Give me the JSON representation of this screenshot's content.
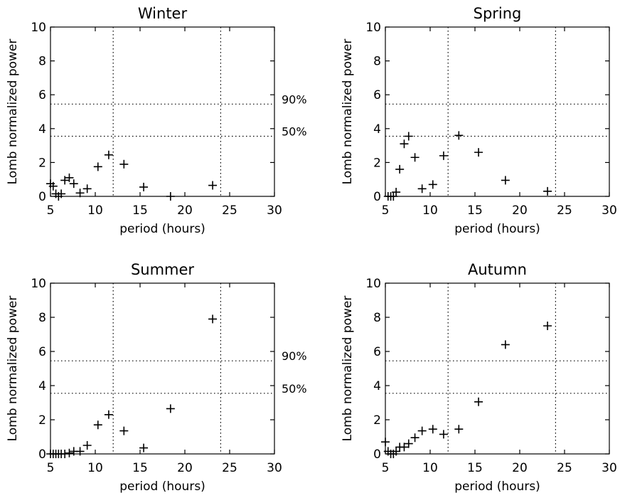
{
  "chart_data": [
    {
      "type": "scatter",
      "title": "Winter",
      "xlabel": "period (hours)",
      "ylabel": "Lomb normalized power",
      "xlim": [
        5,
        30
      ],
      "ylim": [
        0,
        10
      ],
      "xticks": [
        "5",
        "10",
        "15",
        "20",
        "25",
        "30"
      ],
      "yticks": [
        "0",
        "2",
        "4",
        "6",
        "8",
        "10"
      ],
      "reference_lines": {
        "vertical_x": [
          12,
          24
        ],
        "horizontal": [
          {
            "y": 3.55,
            "label": "50%"
          },
          {
            "y": 5.45,
            "label": "90%"
          }
        ]
      },
      "grid": false,
      "marker": "plus",
      "points": [
        [
          5.0,
          0.75
        ],
        [
          5.3,
          0.6
        ],
        [
          5.6,
          0.15
        ],
        [
          5.9,
          0.0
        ],
        [
          6.2,
          0.15
        ],
        [
          6.6,
          0.95
        ],
        [
          7.1,
          1.1
        ],
        [
          7.6,
          0.75
        ],
        [
          8.3,
          0.2
        ],
        [
          9.1,
          0.45
        ],
        [
          10.3,
          1.75
        ],
        [
          11.5,
          2.45
        ],
        [
          13.2,
          1.9
        ],
        [
          15.4,
          0.55
        ],
        [
          18.4,
          0.0
        ],
        [
          23.1,
          0.65
        ]
      ]
    },
    {
      "type": "scatter",
      "title": "Spring",
      "xlabel": "period (hours)",
      "ylabel": "Lomb normalized power",
      "xlim": [
        5,
        30
      ],
      "ylim": [
        0,
        10
      ],
      "xticks": [
        "5",
        "10",
        "15",
        "20",
        "25",
        "30"
      ],
      "yticks": [
        "0",
        "2",
        "4",
        "6",
        "8",
        "10"
      ],
      "reference_lines": {
        "vertical_x": [
          12,
          24
        ],
        "horizontal": [
          {
            "y": 3.55
          },
          {
            "y": 5.45
          }
        ]
      },
      "grid": false,
      "marker": "plus",
      "points": [
        [
          5.3,
          0.0
        ],
        [
          5.6,
          0.0
        ],
        [
          5.9,
          0.0
        ],
        [
          6.2,
          0.25
        ],
        [
          6.6,
          1.6
        ],
        [
          7.1,
          3.1
        ],
        [
          7.6,
          3.55
        ],
        [
          8.3,
          2.3
        ],
        [
          9.1,
          0.45
        ],
        [
          10.3,
          0.7
        ],
        [
          11.5,
          2.4
        ],
        [
          13.2,
          3.6
        ],
        [
          15.4,
          2.6
        ],
        [
          18.4,
          0.95
        ],
        [
          23.1,
          0.3
        ]
      ]
    },
    {
      "type": "scatter",
      "title": "Summer",
      "xlabel": "period (hours)",
      "ylabel": "Lomb normalized power",
      "xlim": [
        5,
        30
      ],
      "ylim": [
        0,
        10
      ],
      "xticks": [
        "5",
        "10",
        "15",
        "20",
        "25",
        "30"
      ],
      "yticks": [
        "0",
        "2",
        "4",
        "6",
        "8",
        "10"
      ],
      "reference_lines": {
        "vertical_x": [
          12,
          24
        ],
        "horizontal": [
          {
            "y": 3.55,
            "label": "50%"
          },
          {
            "y": 5.45,
            "label": "90%"
          }
        ]
      },
      "grid": false,
      "marker": "plus",
      "points": [
        [
          5.0,
          0.0
        ],
        [
          5.3,
          0.0
        ],
        [
          5.6,
          0.0
        ],
        [
          5.9,
          0.0
        ],
        [
          6.2,
          0.0
        ],
        [
          6.6,
          0.0
        ],
        [
          7.1,
          0.05
        ],
        [
          7.6,
          0.15
        ],
        [
          8.3,
          0.15
        ],
        [
          9.1,
          0.5
        ],
        [
          10.3,
          1.7
        ],
        [
          11.5,
          2.3
        ],
        [
          13.2,
          1.35
        ],
        [
          15.4,
          0.35
        ],
        [
          18.4,
          2.65
        ],
        [
          23.1,
          7.9
        ]
      ]
    },
    {
      "type": "scatter",
      "title": "Autumn",
      "xlabel": "period (hours)",
      "ylabel": "Lomb normalized power",
      "xlim": [
        5,
        30
      ],
      "ylim": [
        0,
        10
      ],
      "xticks": [
        "5",
        "10",
        "15",
        "20",
        "25",
        "30"
      ],
      "yticks": [
        "0",
        "2",
        "4",
        "6",
        "8",
        "10"
      ],
      "reference_lines": {
        "vertical_x": [
          12,
          24
        ],
        "horizontal": [
          {
            "y": 3.55
          },
          {
            "y": 5.45
          }
        ]
      },
      "grid": false,
      "marker": "plus",
      "points": [
        [
          5.0,
          0.7
        ],
        [
          5.3,
          0.15
        ],
        [
          5.6,
          0.0
        ],
        [
          5.9,
          0.0
        ],
        [
          6.2,
          0.15
        ],
        [
          6.6,
          0.4
        ],
        [
          7.1,
          0.4
        ],
        [
          7.6,
          0.6
        ],
        [
          8.3,
          0.95
        ],
        [
          9.1,
          1.35
        ],
        [
          10.3,
          1.45
        ],
        [
          11.5,
          1.15
        ],
        [
          13.2,
          1.45
        ],
        [
          15.4,
          3.05
        ],
        [
          18.4,
          6.4
        ],
        [
          23.1,
          7.5
        ]
      ]
    }
  ]
}
